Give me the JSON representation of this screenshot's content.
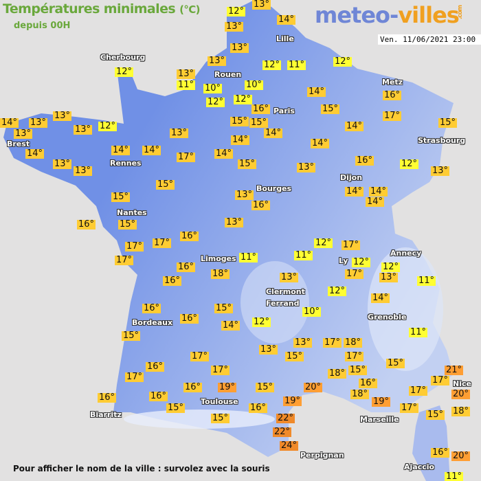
{
  "header": {
    "title": "Températures minimales",
    "unit": "(°C)",
    "subtitle": "depuis 00H",
    "logo_part1": "meteo-",
    "logo_part2": "villes",
    "logo_suffix": ".com",
    "datetime": "Ven. 11/06/2021 23:00"
  },
  "footer": {
    "hint": "Pour afficher le nom de la ville : survolez avec la souris"
  },
  "colors": {
    "land_west": "#7090e6",
    "land_east": "#b9c8f0",
    "sea": "#e2e1e1",
    "cold": "#ffff33",
    "mild": "#ffcc33",
    "warm": "#ff9e33",
    "hot": "#f08a2a",
    "title": "#6aa83c"
  },
  "cities": [
    "Cherbourg",
    "Rouen",
    "Lille",
    "Paris",
    "Metz",
    "Strasbourg",
    "Brest",
    "Rennes",
    "Nantes",
    "Bourges",
    "Dijon",
    "Limoges",
    "Clermont",
    "Ferrand",
    "Ly",
    "Annecy",
    "Grenoble",
    "Bordeaux",
    "Toulouse",
    "Biarritz",
    "Marseille",
    "Nice",
    "Perpignan",
    "Ajaccio"
  ],
  "temps": [
    "12°",
    "13°",
    "13°",
    "14°",
    "13°",
    "13°",
    "12°",
    "13°",
    "11°",
    "10°",
    "12°",
    "12°",
    "11°",
    "10°",
    "12°",
    "16°",
    "15°",
    "15°",
    "14°",
    "14°",
    "15°",
    "12°",
    "16°",
    "17°",
    "14°",
    "15°",
    "14°",
    "14°",
    "16°",
    "12°",
    "13°",
    "13°",
    "15°",
    "14°",
    "17°",
    "14°",
    "14°",
    "13°",
    "12°",
    "13°",
    "13°",
    "14°",
    "13°",
    "13°",
    "14°",
    "13°",
    "13°",
    "15°",
    "15°",
    "16°",
    "15°",
    "13°",
    "16°",
    "14°",
    "14°",
    "14°",
    "13°",
    "16°",
    "17°",
    "17°",
    "17°",
    "16°",
    "16°",
    "18°",
    "11°",
    "11°",
    "12°",
    "17°",
    "12°",
    "17°",
    "12°",
    "13°",
    "11°",
    "13°",
    "12°",
    "14°",
    "10°",
    "12°",
    "15°",
    "14°",
    "16°",
    "16°",
    "15°",
    "11°",
    "13°",
    "13°",
    "15°",
    "17°",
    "18°",
    "17°",
    "15°",
    "21°",
    "17°",
    "17°",
    "19°",
    "16°",
    "17°",
    "16°",
    "16°",
    "15°",
    "16°",
    "15°",
    "15°",
    "16°",
    "20°",
    "18°",
    "15°",
    "16°",
    "18°",
    "19°",
    "17°",
    "17°",
    "20°",
    "17°",
    "15°",
    "18°",
    "19°",
    "22°",
    "22°",
    "24°",
    "16°",
    "20°",
    "11°"
  ]
}
